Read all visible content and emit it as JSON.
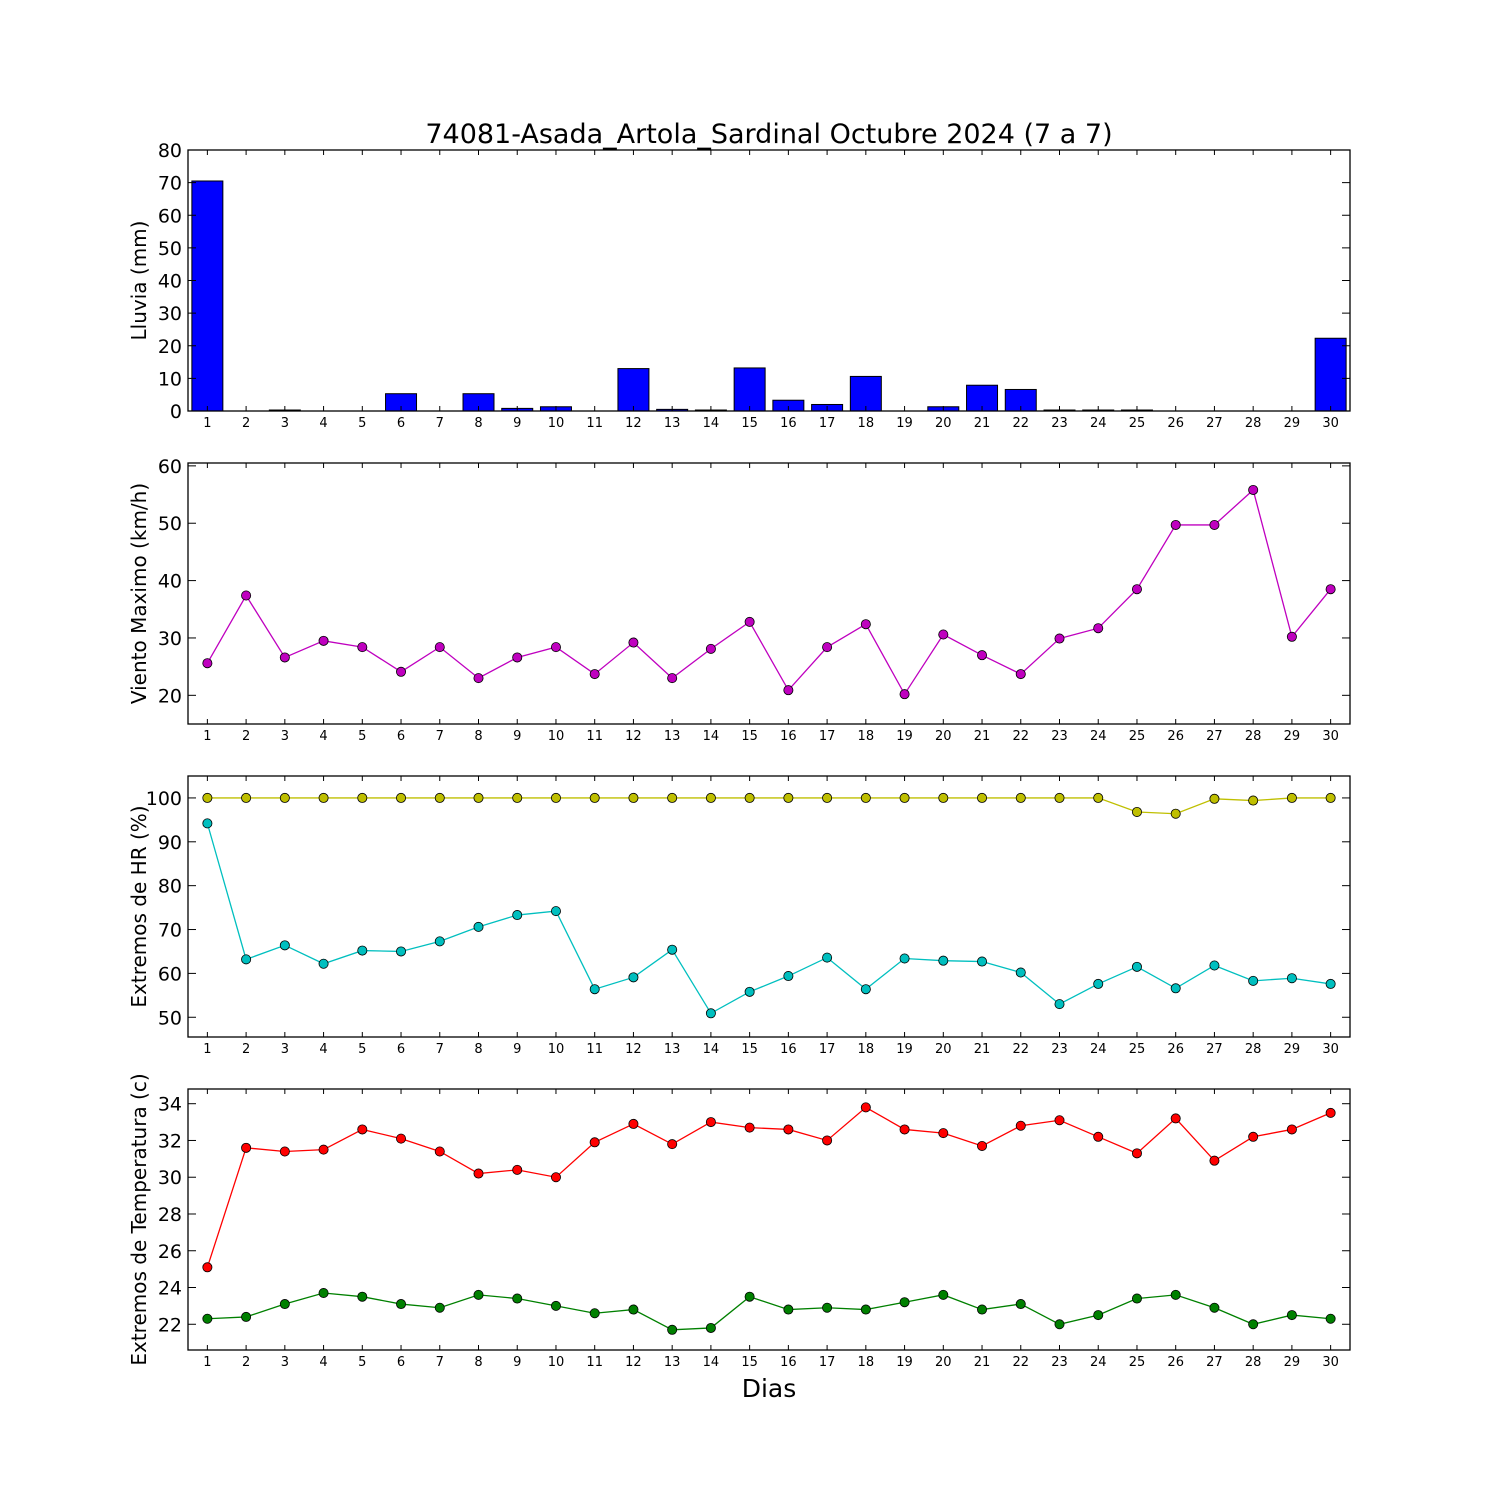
{
  "figure": {
    "title": "74081-Asada_Artola_Sardinal Octubre 2024  (7 a 7)",
    "xlabel": "Dias"
  },
  "chart_data": [
    {
      "type": "bar",
      "ylabel": "Lluvia (mm)",
      "ylim": [
        0,
        80
      ],
      "yticks": [
        0,
        10,
        20,
        30,
        40,
        50,
        60,
        70,
        80
      ],
      "x": [
        1,
        2,
        3,
        4,
        5,
        6,
        7,
        8,
        9,
        10,
        11,
        12,
        13,
        14,
        15,
        16,
        17,
        18,
        19,
        20,
        21,
        22,
        23,
        24,
        25,
        26,
        27,
        28,
        29,
        30
      ],
      "series": [
        {
          "color": "#0000ff",
          "values": [
            70.5,
            0,
            0.3,
            0,
            0,
            5.3,
            0,
            5.3,
            0.8,
            1.3,
            0,
            13.0,
            0.5,
            0.3,
            13.2,
            3.3,
            2.0,
            10.6,
            0,
            1.3,
            7.9,
            6.6,
            0.3,
            0.3,
            0.3,
            0,
            0,
            0,
            0,
            22.3
          ]
        }
      ]
    },
    {
      "type": "line",
      "ylabel": "Viento Maximo (km/h)",
      "ylim": [
        15,
        60.5
      ],
      "yticks": [
        20,
        30,
        40,
        50,
        60
      ],
      "x": [
        1,
        2,
        3,
        4,
        5,
        6,
        7,
        8,
        9,
        10,
        11,
        12,
        13,
        14,
        15,
        16,
        17,
        18,
        19,
        20,
        21,
        22,
        23,
        24,
        25,
        26,
        27,
        28,
        29,
        30
      ],
      "series": [
        {
          "color": "#bf00bf",
          "values": [
            25.6,
            37.4,
            26.6,
            29.5,
            28.4,
            24.1,
            28.4,
            23.0,
            26.6,
            28.4,
            23.7,
            29.2,
            23.0,
            28.1,
            32.8,
            20.9,
            28.4,
            32.4,
            20.2,
            30.6,
            27.0,
            23.7,
            29.9,
            31.7,
            38.5,
            49.7,
            49.7,
            55.8,
            30.2,
            38.5
          ]
        }
      ]
    },
    {
      "type": "line",
      "ylabel": "Extremos de HR (%)",
      "ylim": [
        45.5,
        105
      ],
      "yticks": [
        50,
        60,
        70,
        80,
        90,
        100
      ],
      "x": [
        1,
        2,
        3,
        4,
        5,
        6,
        7,
        8,
        9,
        10,
        11,
        12,
        13,
        14,
        15,
        16,
        17,
        18,
        19,
        20,
        21,
        22,
        23,
        24,
        25,
        26,
        27,
        28,
        29,
        30
      ],
      "series": [
        {
          "color": "#bfbf00",
          "values": [
            100,
            100,
            100,
            100,
            100,
            100,
            100,
            100,
            100,
            100,
            100,
            100,
            100,
            100,
            100,
            100,
            100,
            100,
            100,
            100,
            100,
            100,
            100,
            100,
            96.8,
            96.4,
            99.8,
            99.4,
            100,
            100
          ]
        },
        {
          "color": "#00bfbf",
          "values": [
            94.2,
            63.2,
            66.4,
            62.2,
            65.2,
            65.0,
            67.3,
            70.6,
            73.3,
            74.2,
            56.4,
            59.1,
            65.4,
            50.9,
            55.8,
            59.4,
            63.6,
            56.4,
            63.4,
            62.9,
            62.7,
            60.2,
            53.0,
            57.6,
            61.5,
            56.6,
            61.8,
            58.3,
            58.9,
            57.6
          ]
        }
      ]
    },
    {
      "type": "line",
      "ylabel": "Extremos de Temperatura (c)",
      "ylim": [
        20.6,
        34.8
      ],
      "yticks": [
        22,
        24,
        26,
        28,
        30,
        32,
        34
      ],
      "x": [
        1,
        2,
        3,
        4,
        5,
        6,
        7,
        8,
        9,
        10,
        11,
        12,
        13,
        14,
        15,
        16,
        17,
        18,
        19,
        20,
        21,
        22,
        23,
        24,
        25,
        26,
        27,
        28,
        29,
        30
      ],
      "series": [
        {
          "color": "#ff0000",
          "values": [
            25.1,
            31.6,
            31.4,
            31.5,
            32.6,
            32.1,
            31.4,
            30.2,
            30.4,
            30.0,
            31.9,
            32.9,
            31.8,
            33.0,
            32.7,
            32.6,
            32.0,
            33.8,
            32.6,
            32.4,
            31.7,
            32.8,
            33.1,
            32.2,
            31.3,
            33.2,
            30.9,
            32.2,
            32.6,
            33.5
          ]
        },
        {
          "color": "#008000",
          "values": [
            22.3,
            22.4,
            23.1,
            23.7,
            23.5,
            23.1,
            22.9,
            23.6,
            23.4,
            23.0,
            22.6,
            22.8,
            21.7,
            21.8,
            23.5,
            22.8,
            22.9,
            22.8,
            23.2,
            23.6,
            22.8,
            23.1,
            22.0,
            22.5,
            23.4,
            23.6,
            22.9,
            22.0,
            22.5,
            22.3
          ]
        }
      ]
    }
  ]
}
